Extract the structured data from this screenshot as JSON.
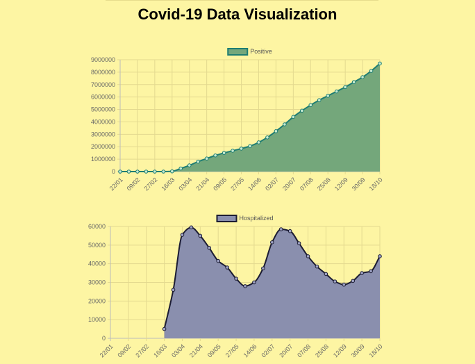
{
  "page": {
    "title": "Covid-19 Data Visualization"
  },
  "chart_data": [
    {
      "type": "area",
      "legend": "Positive",
      "legend_placement": "top",
      "color_fill": "#74a77b",
      "color_line": "#1e7d73",
      "point_fill": "#c8ecd2",
      "grid": true,
      "ylim": [
        0,
        9000000
      ],
      "yticks": [
        "0",
        "1000000",
        "2000000",
        "3000000",
        "4000000",
        "5000000",
        "6000000",
        "7000000",
        "8000000",
        "9000000"
      ],
      "xticks": [
        "22/01",
        "09/02",
        "27/02",
        "16/03",
        "03/04",
        "21/04",
        "09/05",
        "27/05",
        "14/06",
        "02/07",
        "20/07",
        "07/08",
        "25/08",
        "12/09",
        "30/09",
        "18/10"
      ],
      "values": [
        0,
        0,
        0,
        0,
        0,
        0,
        20000,
        250000,
        500000,
        800000,
        1050000,
        1300000,
        1500000,
        1680000,
        1850000,
        2050000,
        2350000,
        2750000,
        3250000,
        3800000,
        4400000,
        4900000,
        5350000,
        5750000,
        6100000,
        6450000,
        6800000,
        7200000,
        7600000,
        8100000,
        8700000
      ]
    },
    {
      "type": "area",
      "legend": "Hospitalized",
      "legend_placement": "top",
      "color_fill": "#8a8fae",
      "color_line": "#1c1c33",
      "point_fill": "#9ea2c4",
      "grid": true,
      "ylim": [
        0,
        60000
      ],
      "yticks": [
        "0",
        "10000",
        "20000",
        "30000",
        "40000",
        "50000",
        "60000"
      ],
      "xticks": [
        "22/01",
        "09/02",
        "27/02",
        "16/03",
        "03/04",
        "21/04",
        "09/05",
        "27/05",
        "14/06",
        "02/07",
        "20/07",
        "07/08",
        "25/08",
        "12/09",
        "30/09",
        "18/10"
      ],
      "values": [
        null,
        null,
        null,
        null,
        null,
        null,
        5000,
        26000,
        55500,
        59500,
        55000,
        48500,
        41500,
        38000,
        32000,
        28000,
        30000,
        37500,
        51500,
        58500,
        57500,
        51000,
        44000,
        38500,
        34500,
        30500,
        28800,
        30800,
        35000,
        36000,
        44000
      ]
    }
  ]
}
